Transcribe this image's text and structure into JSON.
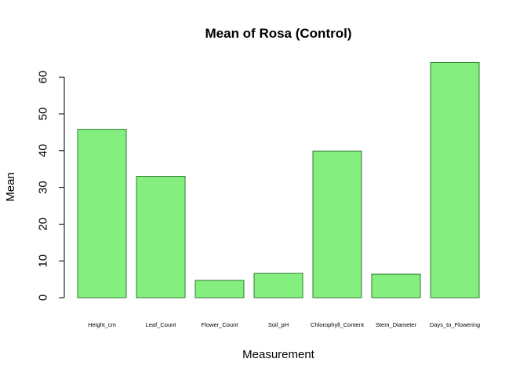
{
  "chart_data": {
    "type": "bar",
    "title": "Mean of Rosa (Control)",
    "xlabel": "Measurement",
    "ylabel": "Mean",
    "categories": [
      "Height_cm",
      "Leaf_Count",
      "Flower_Count",
      "Soil_pH",
      "Chlorophyll_Content",
      "Stem_Diameter",
      "Days_to_Flowering"
    ],
    "values": [
      45.8,
      33.0,
      4.7,
      6.6,
      39.9,
      6.4,
      64.0
    ],
    "yticks": [
      0,
      10,
      20,
      30,
      40,
      50,
      60
    ],
    "ylim": [
      0,
      64
    ],
    "grid": false,
    "bar_color": "#84ee7f",
    "bar_border_color": "#2e7d32"
  }
}
